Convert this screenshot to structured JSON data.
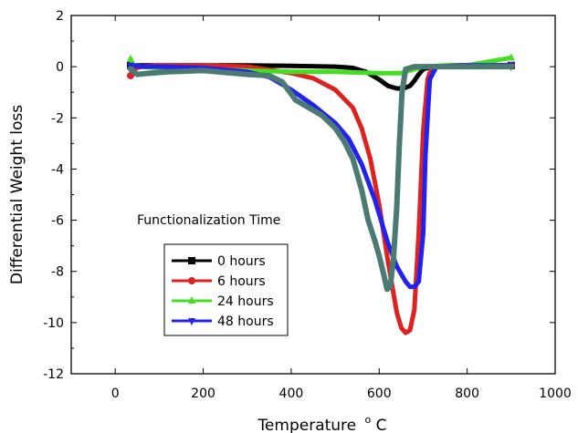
{
  "chart_data": {
    "type": "line",
    "title": "",
    "xlabel": "Temperature",
    "xlabel_unit_sup": "o",
    "xlabel_unit": "C",
    "ylabel": "Differential Weight loss",
    "xlim": [
      -100,
      1000
    ],
    "ylim": [
      -12,
      2
    ],
    "xticks": [
      0,
      200,
      400,
      600,
      800,
      1000
    ],
    "yticks": [
      2,
      0,
      -2,
      -4,
      -6,
      -8,
      -10,
      -12
    ],
    "grid": false,
    "legend_title": "Functionalization Time",
    "legend_position": "lower-left",
    "series": [
      {
        "name": "0 hours",
        "color": "#000000",
        "marker": "square",
        "x": [
          35,
          100,
          200,
          300,
          400,
          500,
          540,
          570,
          600,
          620,
          640,
          655,
          670,
          680,
          690,
          700,
          720,
          760,
          800,
          900
        ],
        "y": [
          0.05,
          0.05,
          0.05,
          0.05,
          0.03,
          0.0,
          -0.05,
          -0.2,
          -0.5,
          -0.75,
          -0.85,
          -0.85,
          -0.75,
          -0.55,
          -0.3,
          -0.1,
          0.0,
          0.05,
          0.05,
          0.05
        ]
      },
      {
        "name": "6 hours",
        "color": "#dd2222",
        "marker": "circle",
        "x": [
          35,
          40,
          60,
          100,
          200,
          300,
          340,
          400,
          450,
          500,
          540,
          560,
          580,
          600,
          620,
          640,
          650,
          660,
          670,
          680,
          690,
          700,
          710,
          720,
          760,
          800,
          900
        ],
        "y": [
          -0.35,
          -0.1,
          0.0,
          0.05,
          0.05,
          0.0,
          -0.1,
          -0.25,
          -0.45,
          -0.9,
          -1.6,
          -2.4,
          -3.6,
          -5.4,
          -7.6,
          -9.6,
          -10.2,
          -10.4,
          -10.3,
          -9.5,
          -6.5,
          -2.5,
          -0.5,
          0.0,
          0.05,
          0.05,
          0.05
        ]
      },
      {
        "name": "24 hours",
        "color": "#44dd22",
        "marker": "triangle-up",
        "x": [
          35,
          40,
          60,
          100,
          200,
          300,
          400,
          500,
          600,
          650,
          700,
          750,
          800,
          900
        ],
        "y": [
          0.3,
          0.05,
          0.0,
          -0.05,
          -0.1,
          -0.15,
          -0.2,
          -0.2,
          -0.25,
          -0.25,
          0.0,
          0.05,
          0.05,
          0.35
        ]
      },
      {
        "name": "48 hours",
        "color": "#2222ee",
        "marker": "triangle-down",
        "x": [
          35,
          60,
          100,
          200,
          300,
          350,
          400,
          450,
          500,
          530,
          560,
          590,
          620,
          640,
          660,
          670,
          680,
          690,
          700,
          705,
          715,
          730,
          800,
          900
        ],
        "y": [
          0.05,
          0.0,
          0.0,
          -0.05,
          -0.2,
          -0.4,
          -0.9,
          -1.5,
          -2.2,
          -2.8,
          -3.8,
          -5.2,
          -6.9,
          -7.8,
          -8.4,
          -8.6,
          -8.6,
          -8.4,
          -6.5,
          -3.5,
          -0.5,
          0.0,
          0.05,
          0.05
        ]
      },
      {
        "name": "",
        "color": "#4a7a72",
        "marker": "triangle-down",
        "x": [
          35,
          50,
          80,
          120,
          200,
          300,
          350,
          380,
          410,
          440,
          470,
          500,
          520,
          540,
          560,
          575,
          590,
          600,
          610,
          618,
          625,
          632,
          640,
          646,
          652,
          660,
          680,
          720,
          800,
          900
        ],
        "y": [
          -0.1,
          -0.3,
          -0.25,
          -0.2,
          -0.15,
          -0.3,
          -0.35,
          -0.6,
          -1.3,
          -1.6,
          -1.9,
          -2.4,
          -2.9,
          -3.6,
          -4.8,
          -6.0,
          -6.8,
          -7.4,
          -8.1,
          -8.7,
          -8.6,
          -7.6,
          -5.5,
          -3.0,
          -1.0,
          -0.1,
          0.0,
          0.0,
          0.0,
          0.0
        ]
      }
    ]
  }
}
